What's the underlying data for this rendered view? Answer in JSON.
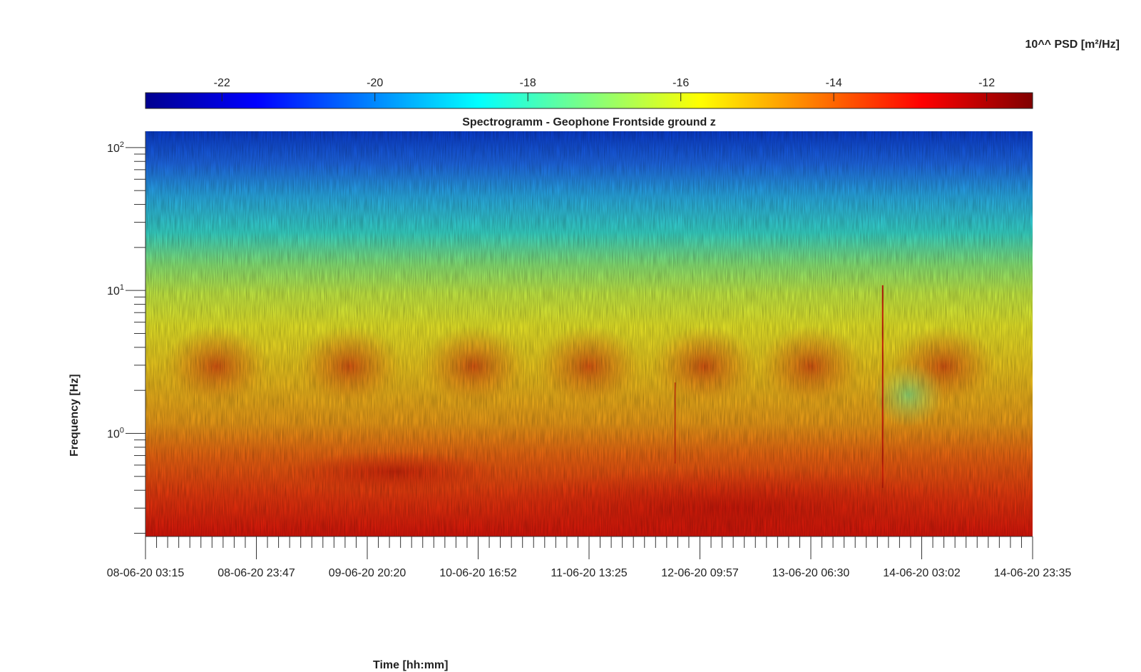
{
  "chart_data": {
    "type": "heatmap",
    "title": "Spectrogramm - Geophone Frontside ground z",
    "xlabel": "Time [hh:mm]",
    "ylabel": "Frequency [Hz]",
    "colorbar": {
      "title": "10^^ PSD [m²/Hz]",
      "ticks": [
        "-22",
        "-20",
        "-18",
        "-16",
        "-14",
        "-12"
      ],
      "tick_values": [
        -22,
        -20,
        -18,
        -16,
        -14,
        -12
      ],
      "range": [
        -23,
        -11.4
      ],
      "colormap": "jet"
    },
    "x_ticks": [
      "08-06-20 03:15",
      "08-06-20 23:47",
      "09-06-20 20:20",
      "10-06-20 16:52",
      "11-06-20 13:25",
      "12-06-20 09:57",
      "13-06-20 06:30",
      "14-06-20 03:02",
      "14-06-20 23:35"
    ],
    "y_scale": "log",
    "y_ticks": [
      {
        "base": "10",
        "exp": "2"
      },
      {
        "base": "10",
        "exp": "1"
      },
      {
        "base": "10",
        "exp": "0"
      }
    ],
    "y_tick_values": [
      100,
      10,
      1
    ],
    "y_range": [
      0.19,
      130
    ],
    "grid": false
  }
}
